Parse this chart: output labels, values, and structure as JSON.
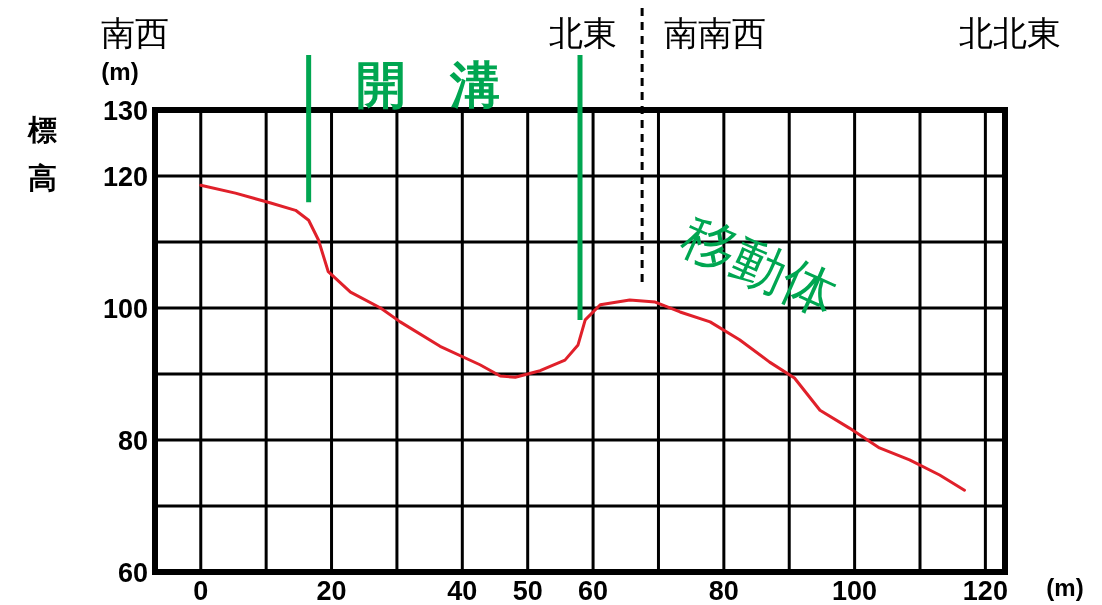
{
  "chart_data": {
    "type": "line",
    "xlabel": "(m)",
    "ylabel": "標高",
    "annotations": [
      "(m)",
      "南西",
      "北東",
      "南南西",
      "北北東",
      "開溝",
      "移動体"
    ],
    "series": [
      {
        "color": "#e0202a",
        "x": [
          0,
          5.3,
          10.7,
          14.5,
          16.5,
          18,
          19.5,
          22.9,
          27.5,
          30.5,
          36.6,
          42.7,
          45.8,
          48.1,
          51.9,
          55.7,
          57.7,
          58.8,
          61.1,
          65.6,
          69.5,
          73.3,
          77.9,
          82.4,
          87,
          90.8,
          94.7,
          99.2,
          103.8,
          108.4,
          113,
          116.8
        ],
        "values": [
          118.6,
          117.4,
          115.9,
          114.8,
          113.3,
          110.3,
          105.5,
          102.4,
          100,
          97.9,
          94.2,
          91.4,
          89.7,
          89.5,
          90.5,
          92.1,
          94.4,
          98.2,
          100.5,
          101.2,
          100.9,
          99.4,
          97.9,
          95.2,
          91.8,
          89.4,
          84.5,
          81.8,
          78.8,
          77,
          74.7,
          72.4
        ]
      }
    ],
    "ref_lines": [
      {
        "axis": "x",
        "value": 16.5,
        "color": "#00a651"
      },
      {
        "axis": "x",
        "value": 58,
        "color": "#00a651"
      },
      {
        "axis": "x",
        "value": 67.5,
        "color": "#000000",
        "line_style": "dashed"
      }
    ],
    "xlim": [
      -7,
      123
    ],
    "ylim": [
      60,
      130
    ],
    "xticks": [
      0,
      {
        "value": 10,
        "label": null
      },
      20,
      {
        "value": 30,
        "label": null
      },
      40,
      50,
      60,
      {
        "value": 70,
        "label": null
      },
      80,
      {
        "value": 90,
        "label": null
      },
      100,
      {
        "value": 110,
        "label": null
      },
      120
    ],
    "yticks": [
      60,
      {
        "value": 70,
        "label": null
      },
      80,
      {
        "value": 90,
        "label": null
      },
      100,
      {
        "value": 110,
        "label": null
      },
      120,
      130
    ],
    "grid": true,
    "marker": "none",
    "line_style": "solid"
  }
}
